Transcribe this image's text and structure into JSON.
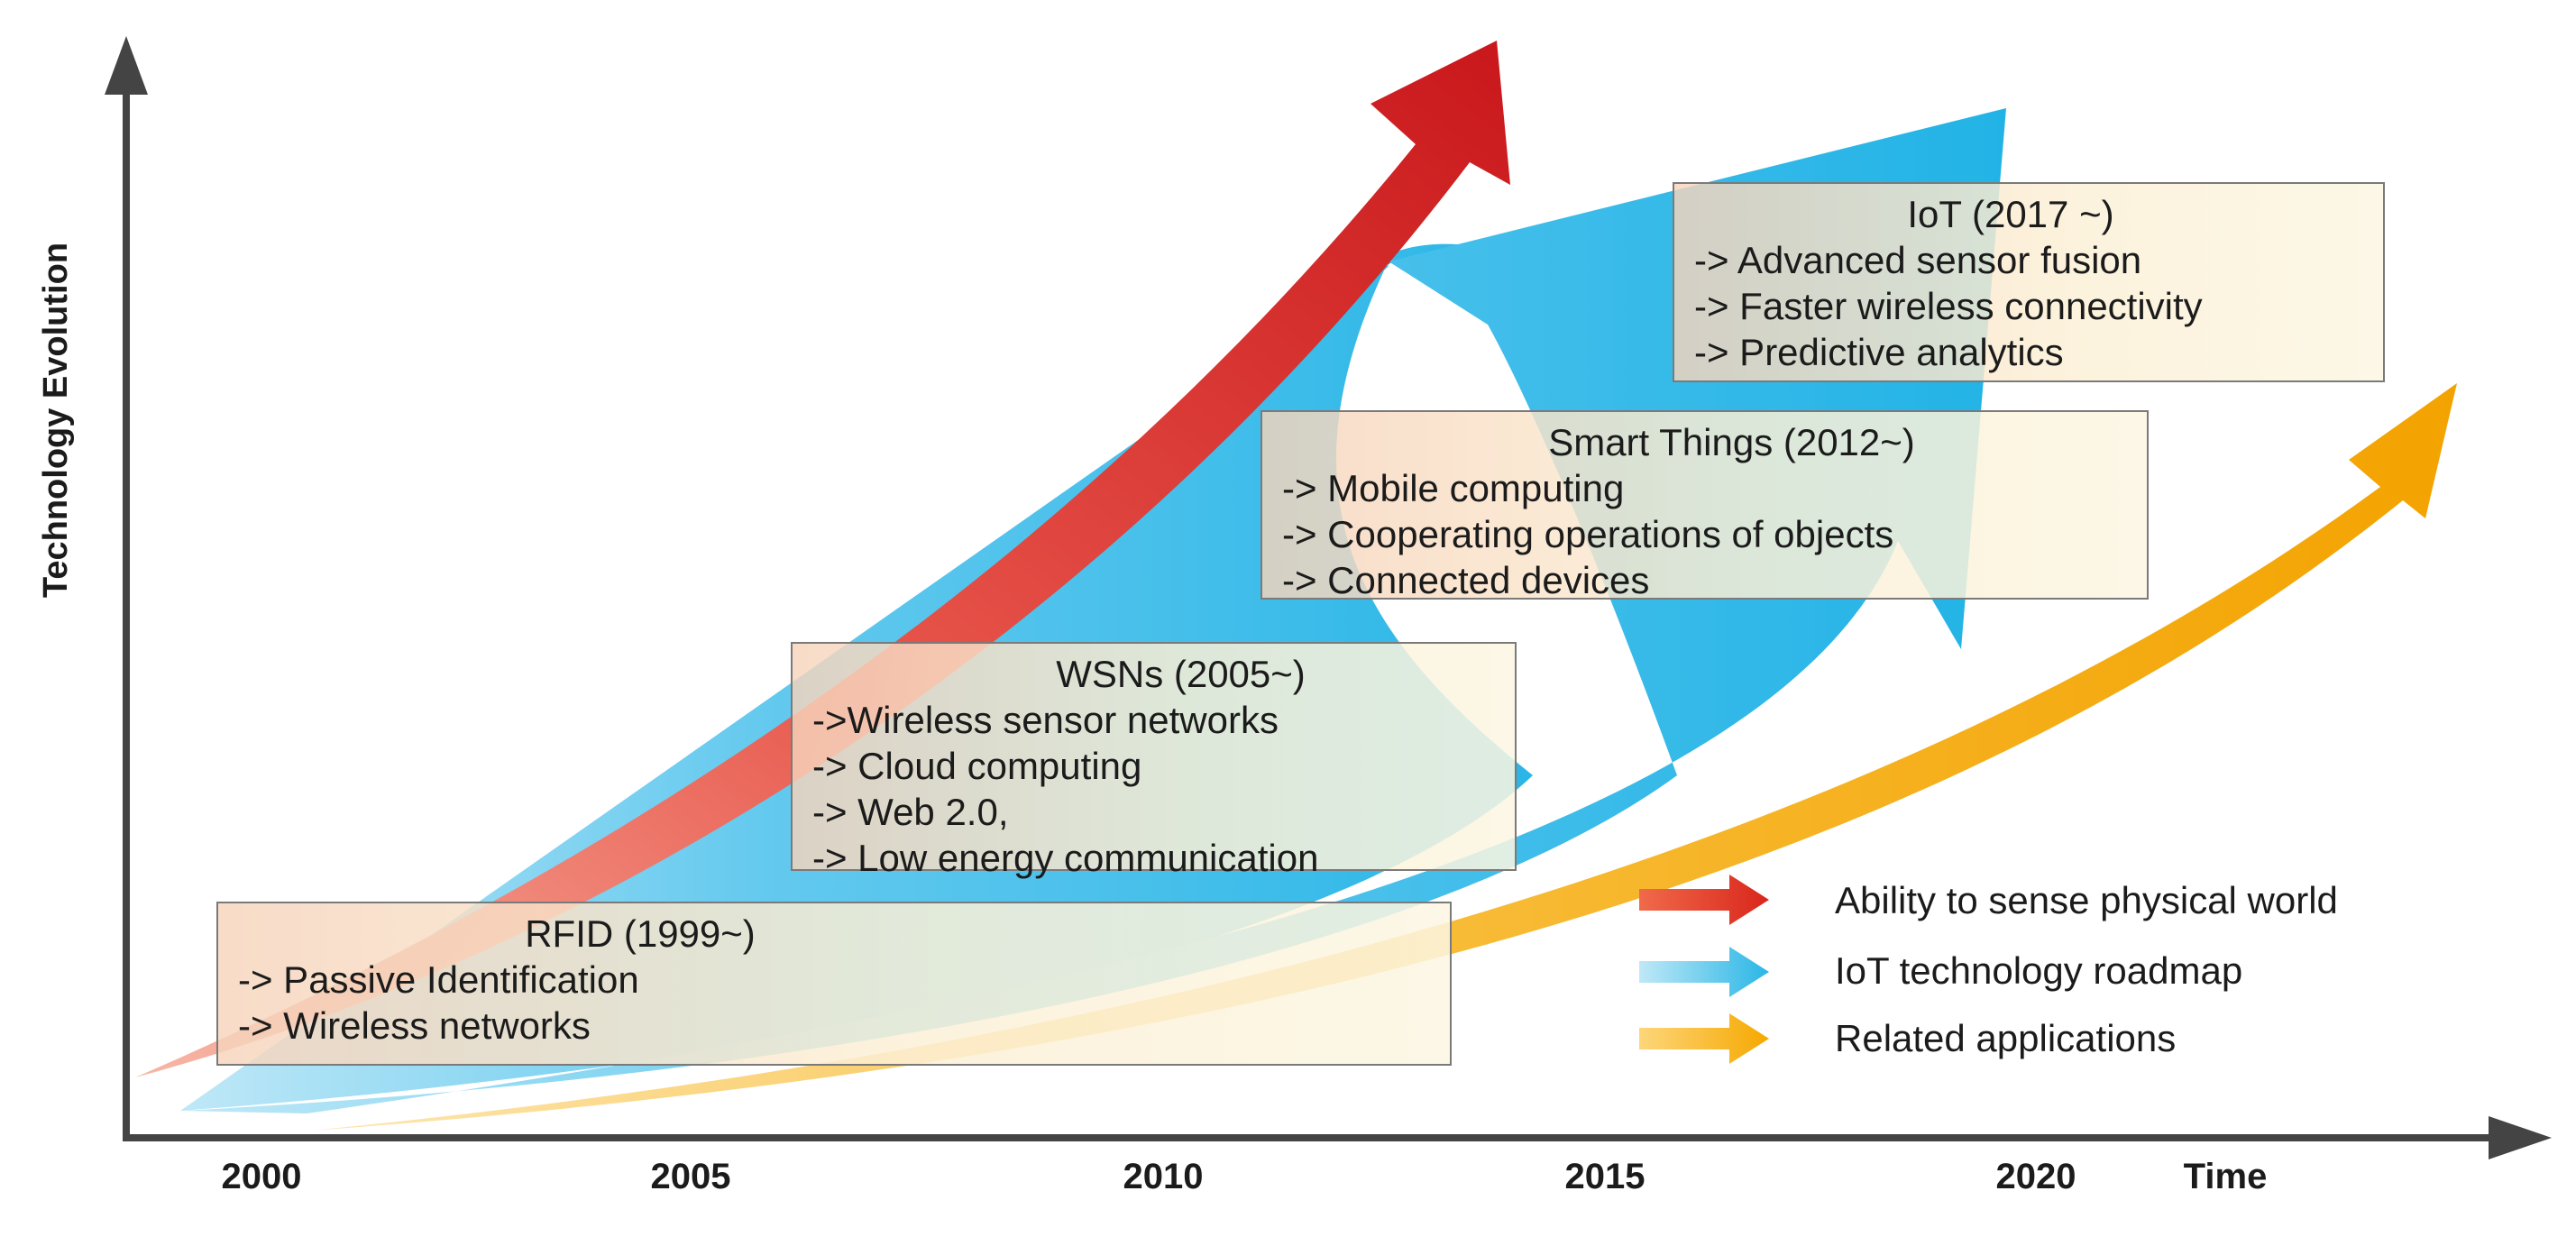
{
  "axes": {
    "y_label": "Technology Evolution",
    "x_label": "Time",
    "x_ticks": [
      "2000",
      "2005",
      "2010",
      "2015",
      "2020"
    ]
  },
  "stages": [
    {
      "title": "RFID (1999~)",
      "items": [
        "-> Passive Identification",
        "-> Wireless networks"
      ]
    },
    {
      "title": "WSNs (2005~)",
      "items": [
        "->Wireless sensor networks",
        "-> Cloud computing",
        "-> Web 2.0,",
        "-> Low energy communication"
      ]
    },
    {
      "title": "Smart Things (2012~)",
      "items": [
        "-> Mobile computing",
        "-> Cooperating operations of objects",
        "-> Connected devices"
      ]
    },
    {
      "title": "IoT (2017 ~)",
      "items": [
        "-> Advanced sensor fusion",
        "-> Faster wireless connectivity",
        "-> Predictive analytics"
      ]
    }
  ],
  "legend": [
    {
      "label": "Ability to sense physical world",
      "color": "#d9261c"
    },
    {
      "label": "IoT technology roadmap",
      "color": "#29b6e6"
    },
    {
      "label": "Related applications",
      "color": "#f6a800"
    }
  ]
}
